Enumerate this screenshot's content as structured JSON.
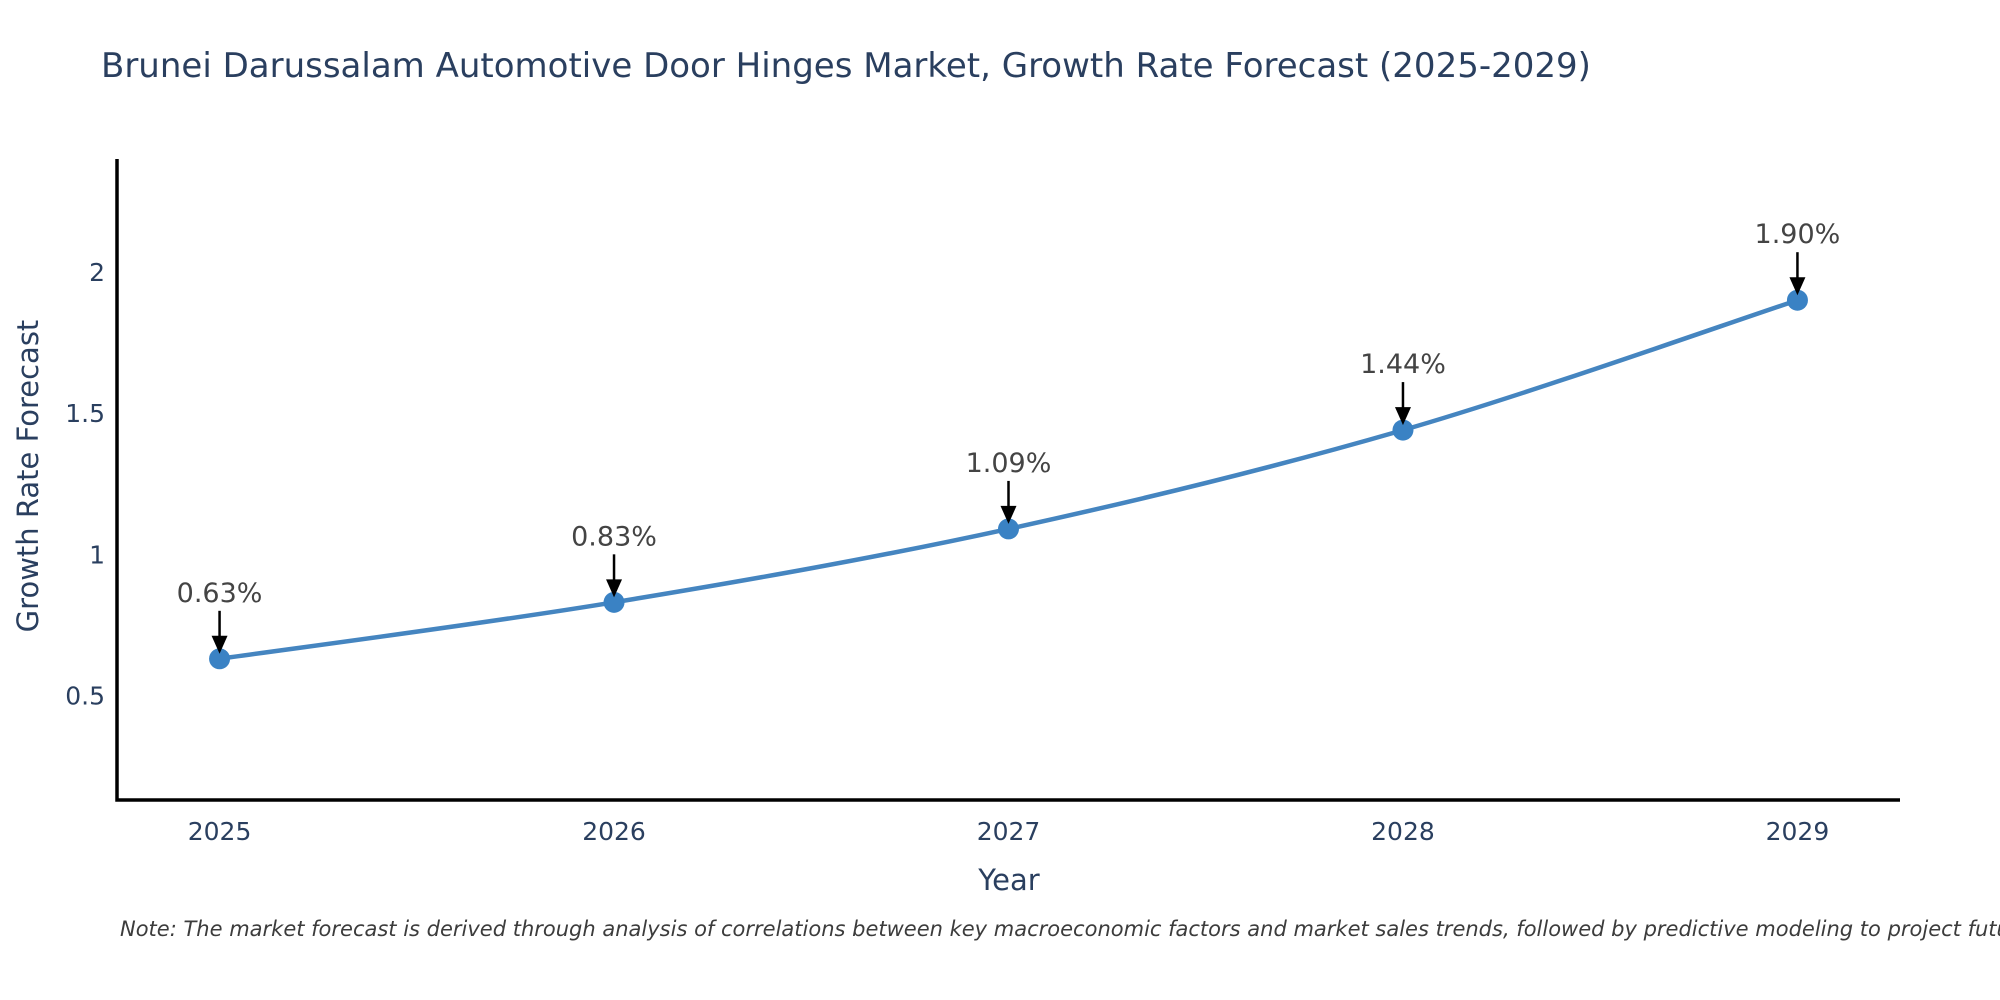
{
  "title": "Brunei Darussalam Automotive Door Hinges Market, Growth Rate Forecast (2025-2029)",
  "note": "Note: The market forecast is derived through analysis of correlations between key macroeconomic factors and market sales trends, followed by predictive modeling to project future sales",
  "chart_data": {
    "type": "line",
    "title": "Brunei Darussalam Automotive Door Hinges Market, Growth Rate Forecast (2025-2029)",
    "xlabel": "Year",
    "ylabel": "Growth Rate Forecast",
    "x": [
      2025,
      2026,
      2027,
      2028,
      2029
    ],
    "values": [
      0.63,
      0.83,
      1.09,
      1.44,
      1.9
    ],
    "point_labels": [
      "0.63%",
      "0.83%",
      "1.09%",
      "1.44%",
      "1.90%"
    ],
    "xticks": [
      "2025",
      "2026",
      "2027",
      "2028",
      "2029"
    ],
    "yticks": [
      0.5,
      1,
      1.5,
      2
    ],
    "ytick_labels": [
      "0.5",
      "1",
      "1.5",
      "2"
    ],
    "xlim": [
      2024.74,
      2029.26
    ],
    "ylim": [
      0.13,
      2.4
    ],
    "grid": false,
    "legend": "none",
    "curve": "spline",
    "colors": {
      "line": "#4585c0",
      "marker": "#3a82c4",
      "axis": "#000000",
      "tick_text": "#2a3f5f",
      "annotation_text": "#444444",
      "arrow": "#000000",
      "title_text": "#2a3f5f"
    }
  }
}
